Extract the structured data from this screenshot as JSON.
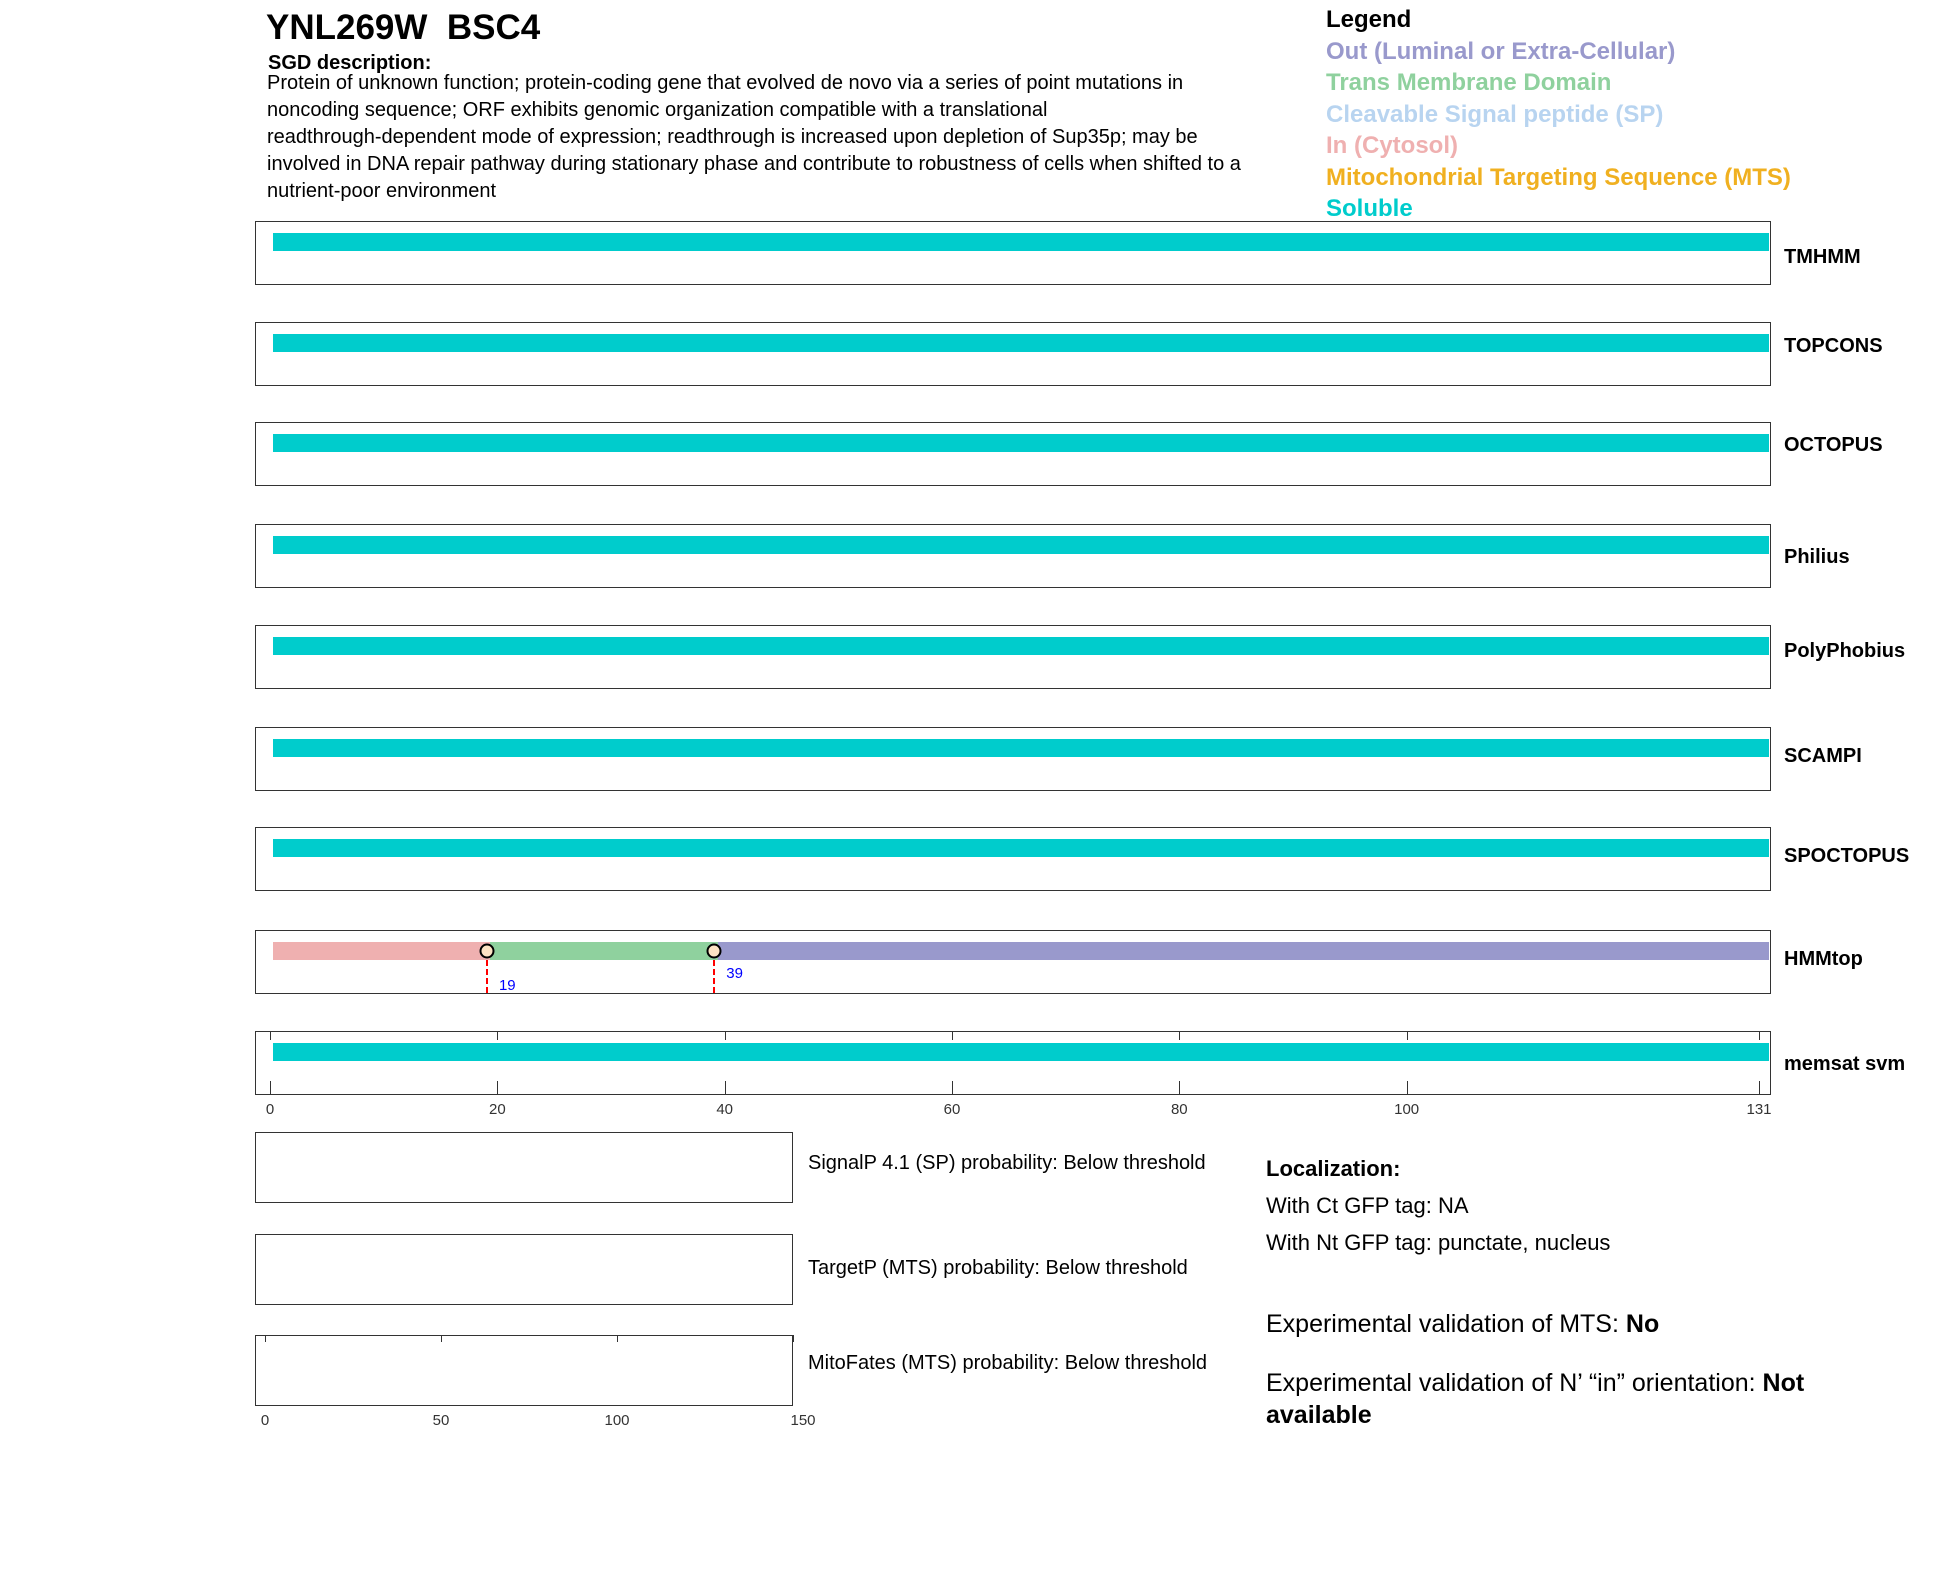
{
  "header": {
    "title": "YNL269W  BSC4",
    "description_heading": "SGD description:",
    "description_lines": [
      "Protein of unknown function; protein-coding gene that evolved de novo via a series of point mutations in",
      "noncoding sequence; ORF exhibits genomic organization compatible with a translational",
      "readthrough-dependent mode of expression; readthrough is increased upon depletion of Sup35p; may be",
      "involved in DNA repair pathway during stationary phase and contribute to robustness of cells when shifted to a",
      "nutrient-poor environment"
    ]
  },
  "legend": {
    "title": "Legend",
    "items": [
      {
        "label": "Out (Luminal or Extra-Cellular)",
        "color": "#9999cc"
      },
      {
        "label": "Trans Membrane Domain",
        "color": "#8fd19e"
      },
      {
        "label": "Cleavable Signal peptide (SP)",
        "color": "#b8d4f0"
      },
      {
        "label": "In (Cytosol)",
        "color": "#efb0b0"
      },
      {
        "label": "Mitochondrial Targeting Sequence (MTS)",
        "color": "#f0b020"
      },
      {
        "label": "Soluble",
        "color": "#00cccc"
      }
    ]
  },
  "chart_data": {
    "type": "bar",
    "xlim": [
      0,
      131
    ],
    "xticks": [
      0,
      20,
      40,
      60,
      80,
      100,
      131
    ],
    "tracks": [
      {
        "name": "TMHMM",
        "segments": [
          {
            "start": 0,
            "end": 131,
            "type": "Soluble"
          }
        ]
      },
      {
        "name": "TOPCONS",
        "segments": [
          {
            "start": 0,
            "end": 131,
            "type": "Soluble"
          }
        ]
      },
      {
        "name": "OCTOPUS",
        "segments": [
          {
            "start": 0,
            "end": 131,
            "type": "Soluble"
          }
        ]
      },
      {
        "name": "Philius",
        "segments": [
          {
            "start": 0,
            "end": 131,
            "type": "Soluble"
          }
        ]
      },
      {
        "name": "PolyPhobius",
        "segments": [
          {
            "start": 0,
            "end": 131,
            "type": "Soluble"
          }
        ]
      },
      {
        "name": "SCAMPI",
        "segments": [
          {
            "start": 0,
            "end": 131,
            "type": "Soluble"
          }
        ]
      },
      {
        "name": "SPOCTOPUS",
        "segments": [
          {
            "start": 0,
            "end": 131,
            "type": "Soluble"
          }
        ]
      },
      {
        "name": "HMMtop",
        "segments": [
          {
            "start": 0,
            "end": 19,
            "type": "In (Cytosol)"
          },
          {
            "start": 19,
            "end": 39,
            "type": "Trans Membrane Domain"
          },
          {
            "start": 39,
            "end": 131,
            "type": "Out (Luminal or Extra-Cellular)"
          }
        ],
        "markers": [
          "19",
          "39"
        ]
      },
      {
        "name": "memsat svm",
        "segments": [
          {
            "start": 0,
            "end": 131,
            "type": "Soluble"
          }
        ]
      }
    ],
    "probability_panels": {
      "xlim": [
        0,
        150
      ],
      "xticks": [
        "0",
        "50",
        "100",
        "150"
      ],
      "labels": [
        "SignalP 4.1 (SP) probability: Below threshold",
        "TargetP (MTS) probability: Below threshold",
        "MitoFates (MTS) probability: Below threshold"
      ]
    }
  },
  "localization": {
    "heading": "Localization:",
    "ct": "With Ct GFP tag: NA",
    "nt": "With Nt GFP tag: punctate, nucleus"
  },
  "experimental": {
    "mts_label": "Experimental validation of MTS: ",
    "mts_value": "No",
    "orient_label": "Experimental validation of N’ “in” orientation: ",
    "orient_value": "Not available"
  }
}
